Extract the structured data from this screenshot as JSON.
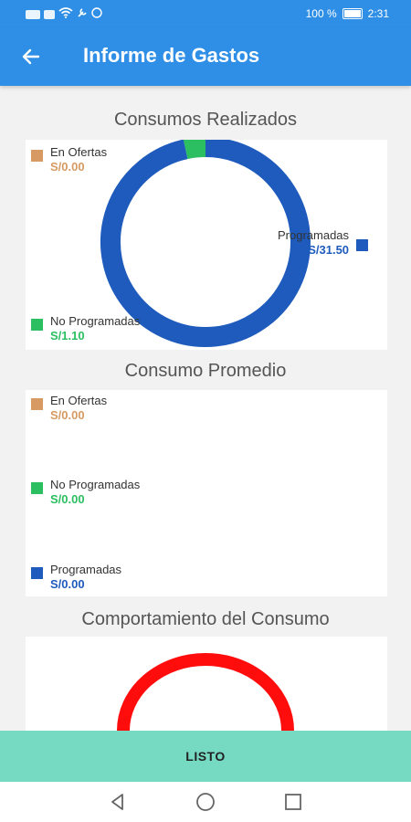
{
  "status_bar": {
    "battery_text": "100 %",
    "time": "2:31"
  },
  "app_bar": {
    "title": "Informe de Gastos"
  },
  "sections": {
    "consumos_realizados": {
      "title": "Consumos Realizados",
      "legend": [
        {
          "label": "En Ofertas",
          "value": "S/0.00",
          "color": "#d79a62"
        },
        {
          "label": "Programadas",
          "value": "S/31.50",
          "color": "#1e5bbd"
        },
        {
          "label": "No Programadas",
          "value": "S/1.10",
          "color": "#2bbf61"
        }
      ]
    },
    "consumo_promedio": {
      "title": "Consumo Promedio",
      "legend": [
        {
          "label": "En Ofertas",
          "value": "S/0.00",
          "color": "#d79a62"
        },
        {
          "label": "No Programadas",
          "value": "S/0.00",
          "color": "#2bbf61"
        },
        {
          "label": "Programadas",
          "value": "S/0.00",
          "color": "#1e5bbd"
        }
      ]
    },
    "comportamiento": {
      "title": "Comportamiento del Consumo",
      "gauge_color": "#ff0d0d"
    }
  },
  "chart_data": {
    "type": "pie",
    "categories": [
      "En Ofertas",
      "Programadas",
      "No Programadas"
    ],
    "values": [
      0.0,
      31.5,
      1.1
    ],
    "colors": [
      "#d79a62",
      "#1e5bbd",
      "#2bbf61"
    ]
  },
  "footer": {
    "listo_label": "LISTO"
  }
}
